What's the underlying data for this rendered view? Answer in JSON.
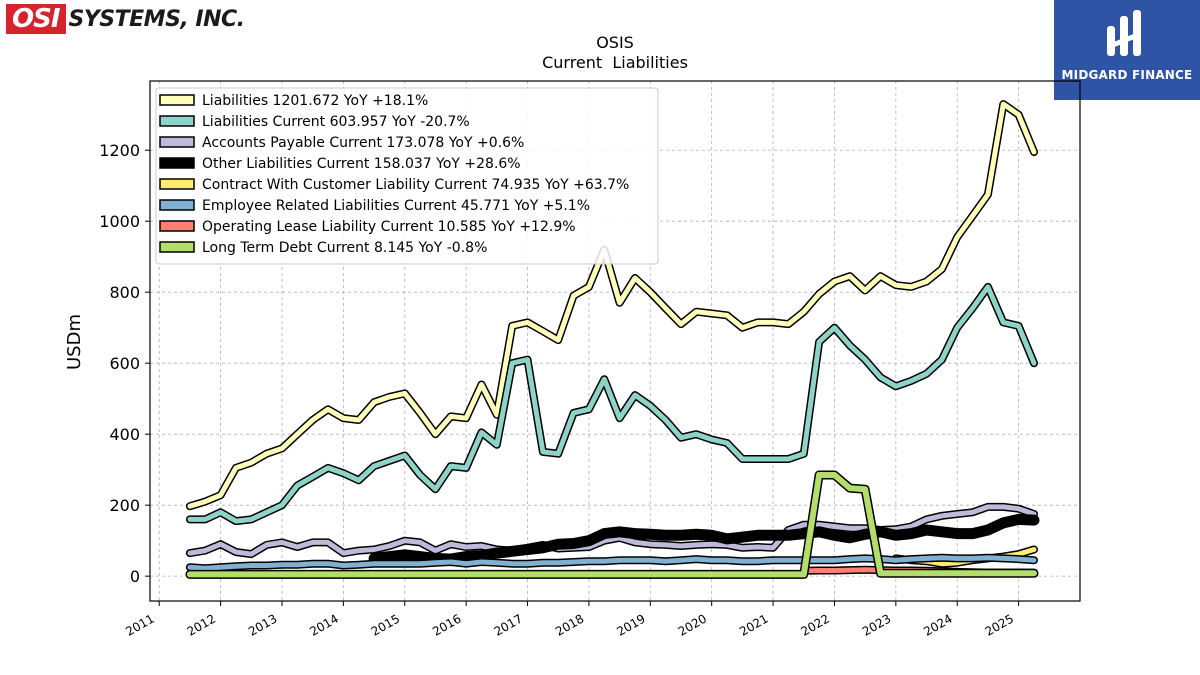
{
  "brand": {
    "logo_box": "OSI",
    "logo_text": "SYSTEMS, INC."
  },
  "watermark": {
    "name": "MIDGARD FINANCE"
  },
  "chart_data": {
    "type": "line",
    "title": "OSIS",
    "subtitle": "Current  Liabilities",
    "ylabel": "USDm",
    "xlabel": "",
    "ylim": [
      -70,
      1395
    ],
    "xlim": [
      2010.85,
      2026.0
    ],
    "grid": true,
    "legend_position": "top-left",
    "x_ticks": [
      "2011",
      "2012",
      "2013",
      "2014",
      "2015",
      "2016",
      "2017",
      "2018",
      "2019",
      "2020",
      "2021",
      "2022",
      "2023",
      "2024",
      "2025"
    ],
    "y_ticks": [
      0,
      200,
      400,
      600,
      800,
      1000,
      1200
    ],
    "x": [
      2011.5,
      2011.75,
      2012.0,
      2012.25,
      2012.5,
      2012.75,
      2013.0,
      2013.25,
      2013.5,
      2013.75,
      2014.0,
      2014.25,
      2014.5,
      2014.75,
      2015.0,
      2015.25,
      2015.5,
      2015.75,
      2016.0,
      2016.25,
      2016.5,
      2016.75,
      2017.0,
      2017.25,
      2017.5,
      2017.75,
      2018.0,
      2018.25,
      2018.5,
      2018.75,
      2019.0,
      2019.25,
      2019.5,
      2019.75,
      2020.0,
      2020.25,
      2020.5,
      2020.75,
      2021.0,
      2021.25,
      2021.5,
      2021.75,
      2022.0,
      2022.25,
      2022.5,
      2022.75,
      2023.0,
      2023.25,
      2023.5,
      2023.75,
      2024.0,
      2024.25,
      2024.5,
      2024.75,
      2025.0,
      2025.25
    ],
    "series": [
      {
        "name": "Liabilities  1201.672 YoY +18.1%",
        "color": "#ffffbb",
        "width": 5,
        "values": [
          197,
          210,
          228,
          305,
          320,
          345,
          360,
          400,
          440,
          470,
          445,
          440,
          490,
          505,
          515,
          460,
          400,
          450,
          445,
          540,
          455,
          705,
          715,
          690,
          665,
          790,
          815,
          920,
          770,
          840,
          800,
          755,
          710,
          745,
          740,
          735,
          700,
          715,
          715,
          710,
          745,
          795,
          830,
          845,
          805,
          845,
          820,
          815,
          830,
          865,
          955,
          1015,
          1075,
          1330,
          1300,
          1195
        ]
      },
      {
        "name": "Liabilities Current  603.957 YoY -20.7%",
        "color": "#8dd3c7",
        "width": 5,
        "values": [
          160,
          160,
          180,
          155,
          160,
          180,
          200,
          255,
          280,
          305,
          290,
          270,
          310,
          325,
          340,
          285,
          245,
          310,
          305,
          405,
          370,
          600,
          610,
          350,
          345,
          460,
          470,
          555,
          445,
          510,
          480,
          440,
          390,
          400,
          385,
          375,
          330,
          330,
          330,
          330,
          345,
          660,
          700,
          650,
          610,
          560,
          535,
          550,
          570,
          610,
          700,
          755,
          815,
          715,
          705,
          600
        ]
      },
      {
        "name": "Accounts Payable Current  173.078 YoY +0.6%",
        "color": "#bebada",
        "width": 5,
        "values": [
          65,
          72,
          90,
          68,
          62,
          88,
          95,
          82,
          95,
          95,
          65,
          72,
          75,
          85,
          100,
          95,
          72,
          90,
          82,
          85,
          75,
          72,
          80,
          88,
          78,
          80,
          82,
          100,
          108,
          95,
          90,
          88,
          85,
          88,
          90,
          88,
          80,
          82,
          80,
          130,
          145,
          145,
          140,
          135,
          135,
          130,
          132,
          140,
          160,
          170,
          175,
          180,
          195,
          195,
          190,
          175
        ]
      },
      {
        "name": "Other Liabilities Current  158.037 YoY +28.6%",
        "color": "#000000",
        "width": 8,
        "values": [
          null,
          null,
          null,
          null,
          null,
          null,
          null,
          null,
          null,
          null,
          null,
          null,
          50,
          55,
          60,
          55,
          50,
          48,
          55,
          58,
          65,
          70,
          75,
          80,
          90,
          92,
          100,
          120,
          125,
          120,
          118,
          115,
          115,
          118,
          115,
          105,
          110,
          115,
          115,
          115,
          120,
          125,
          115,
          108,
          118,
          125,
          115,
          120,
          130,
          125,
          120,
          120,
          130,
          150,
          160,
          158
        ]
      },
      {
        "name": "Contract With Customer Liability Current  74.935 YoY +63.7%",
        "color": "#ffed6f",
        "width": 5,
        "values": [
          null,
          null,
          null,
          null,
          null,
          null,
          null,
          null,
          null,
          null,
          null,
          null,
          null,
          null,
          null,
          null,
          null,
          null,
          null,
          null,
          null,
          null,
          null,
          null,
          null,
          null,
          null,
          null,
          null,
          null,
          null,
          null,
          null,
          null,
          null,
          null,
          null,
          null,
          null,
          null,
          null,
          null,
          null,
          null,
          null,
          null,
          50,
          45,
          42,
          35,
          38,
          45,
          50,
          55,
          62,
          75
        ]
      },
      {
        "name": "Employee Related Liabilities Current  45.771 YoY +5.1%",
        "color": "#80b1d3",
        "width": 5,
        "values": [
          25,
          22,
          25,
          28,
          30,
          30,
          32,
          32,
          35,
          35,
          30,
          32,
          35,
          35,
          35,
          35,
          38,
          40,
          35,
          40,
          38,
          35,
          35,
          38,
          38,
          40,
          42,
          42,
          45,
          45,
          45,
          42,
          45,
          48,
          45,
          45,
          42,
          42,
          45,
          45,
          45,
          45,
          45,
          48,
          50,
          48,
          45,
          48,
          50,
          52,
          50,
          50,
          52,
          50,
          48,
          45
        ]
      },
      {
        "name": "Operating Lease Liability Current  10.585 YoY +12.9%",
        "color": "#fb8072",
        "width": 5,
        "values": [
          null,
          null,
          null,
          null,
          null,
          null,
          null,
          null,
          null,
          null,
          null,
          null,
          null,
          null,
          null,
          null,
          null,
          null,
          null,
          null,
          null,
          null,
          null,
          null,
          null,
          null,
          null,
          null,
          null,
          null,
          null,
          null,
          null,
          null,
          null,
          null,
          null,
          null,
          null,
          null,
          15,
          16,
          16,
          17,
          18,
          17,
          16,
          16,
          15,
          14,
          12,
          11,
          10,
          10,
          10,
          10
        ]
      },
      {
        "name": "Long Term Debt Current  8.145 YoY -0.8%",
        "color": "#b3de69",
        "width": 6,
        "values": [
          5,
          5,
          5,
          5,
          5,
          5,
          5,
          5,
          5,
          5,
          5,
          5,
          5,
          5,
          5,
          5,
          5,
          5,
          5,
          5,
          5,
          5,
          5,
          5,
          5,
          5,
          5,
          5,
          5,
          5,
          5,
          5,
          5,
          5,
          5,
          5,
          5,
          5,
          5,
          5,
          5,
          285,
          285,
          248,
          245,
          8,
          8,
          8,
          8,
          8,
          8,
          8,
          8,
          8,
          8,
          8
        ]
      }
    ]
  }
}
